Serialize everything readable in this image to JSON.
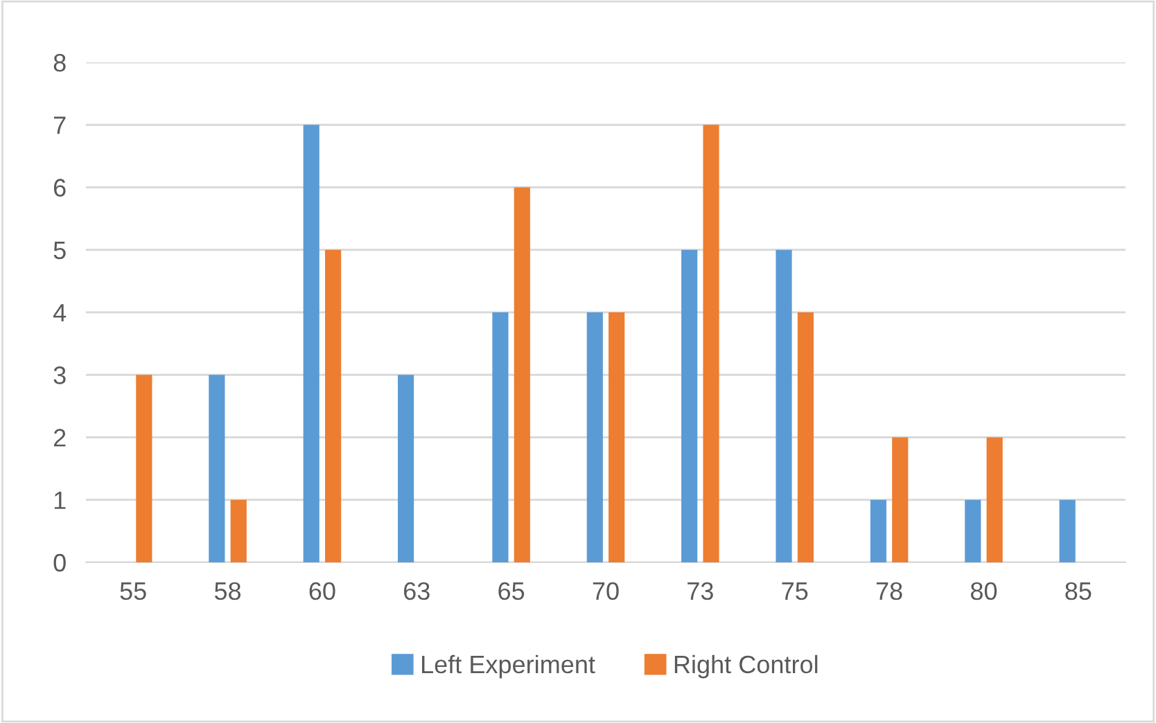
{
  "chart_data": {
    "type": "bar",
    "categories": [
      "55",
      "58",
      "60",
      "63",
      "65",
      "70",
      "73",
      "75",
      "78",
      "80",
      "85"
    ],
    "series": [
      {
        "name": "Left Experiment",
        "color": "#5b9bd5",
        "values": [
          0,
          3,
          7,
          3,
          4,
          4,
          5,
          5,
          1,
          1,
          1
        ]
      },
      {
        "name": "Right Control",
        "color": "#ed7d31",
        "values": [
          3,
          1,
          5,
          0,
          6,
          4,
          7,
          4,
          2,
          2,
          0
        ]
      }
    ],
    "ylim": [
      0,
      8
    ],
    "yticks": [
      0,
      1,
      2,
      3,
      4,
      5,
      6,
      7,
      8
    ],
    "grid": "y",
    "legend": "bottom"
  }
}
